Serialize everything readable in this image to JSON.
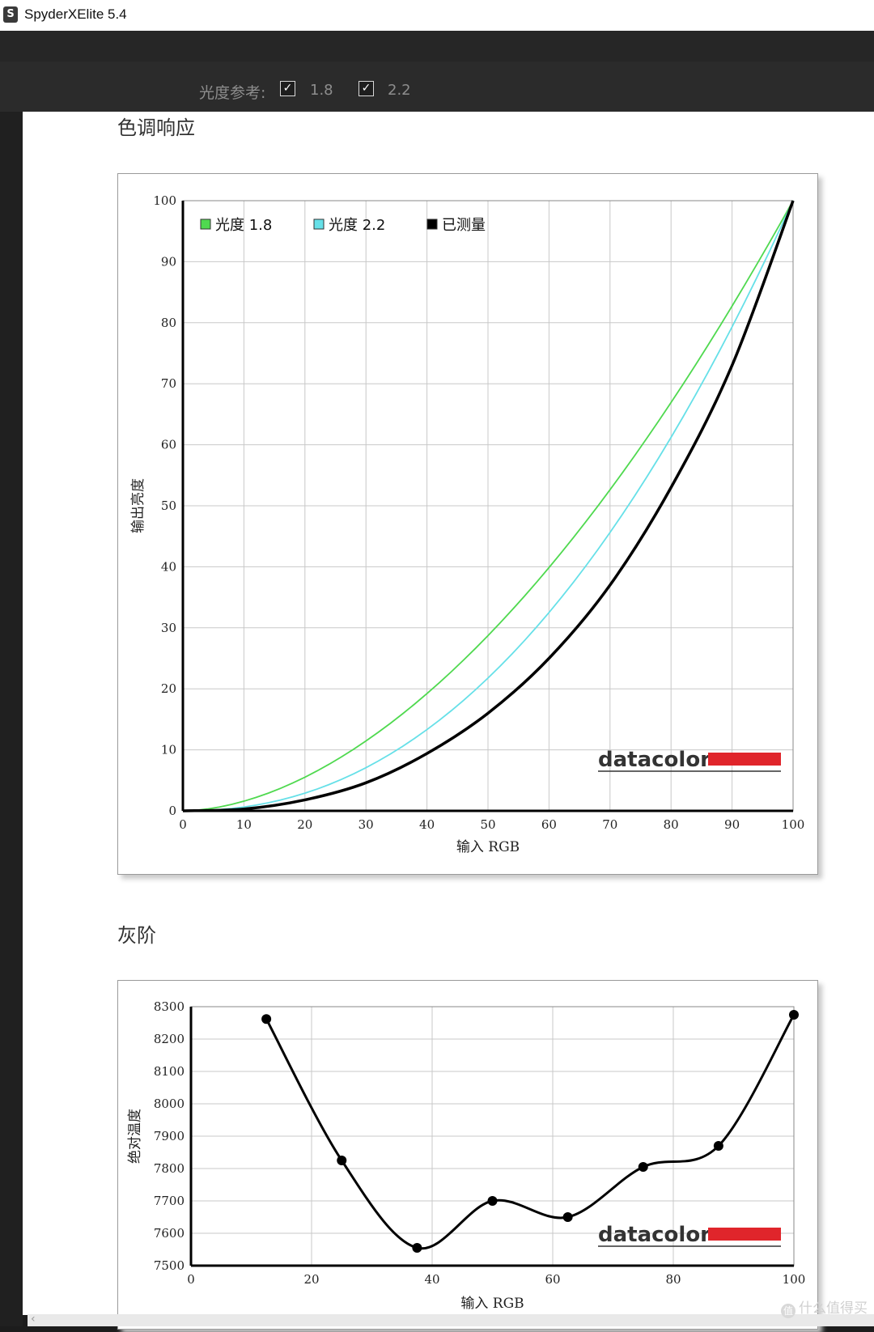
{
  "window": {
    "title": "SpyderXElite 5.4",
    "icon_letter": "S"
  },
  "toolbar": {
    "gamma_label": "光度参考:",
    "options": [
      {
        "label": "1.8",
        "checked": true
      },
      {
        "label": "2.2",
        "checked": true
      }
    ],
    "check_glyph": "✓"
  },
  "sections": {
    "tone_title": "色调响应",
    "gray_title": "灰阶"
  },
  "watermark": {
    "text": "什么值得买",
    "icon": "值"
  },
  "brand": {
    "name": "datacolor",
    "accent": "#e0252b"
  },
  "chart_data": [
    {
      "type": "line",
      "xlabel": "输入 RGB",
      "ylabel": "输出亮度",
      "xlim": [
        0,
        100
      ],
      "ylim": [
        0,
        100
      ],
      "xticks": [
        0,
        10,
        20,
        30,
        40,
        50,
        60,
        70,
        80,
        90,
        100
      ],
      "yticks": [
        0,
        10,
        20,
        30,
        40,
        50,
        60,
        70,
        80,
        90,
        100
      ],
      "grid": true,
      "legend_position": "top-left",
      "series": [
        {
          "name": "光度 1.8",
          "color": "#4fd94f",
          "gamma": 1.8,
          "x": [
            0,
            10,
            20,
            30,
            40,
            50,
            60,
            70,
            80,
            90,
            100
          ],
          "y": [
            0,
            1.6,
            5.5,
            11.5,
            19.2,
            28.7,
            39.9,
            52.6,
            66.9,
            82.7,
            100
          ]
        },
        {
          "name": "光度 2.2",
          "color": "#66e0e8",
          "gamma": 2.2,
          "x": [
            0,
            10,
            20,
            30,
            40,
            50,
            60,
            70,
            80,
            90,
            100
          ],
          "y": [
            0,
            0.6,
            2.9,
            7.1,
            13.3,
            21.8,
            32.5,
            45.6,
            61.2,
            79.3,
            100
          ]
        },
        {
          "name": "已测量",
          "color": "#000000",
          "x": [
            0,
            10,
            20,
            30,
            40,
            50,
            60,
            70,
            80,
            90,
            100
          ],
          "y": [
            0,
            0.3,
            1.8,
            4.6,
            9.4,
            16.0,
            25.0,
            37.0,
            53.0,
            73.0,
            100
          ]
        }
      ]
    },
    {
      "type": "line",
      "xlabel": "输入 RGB",
      "ylabel": "绝对温度",
      "xlim": [
        0,
        100
      ],
      "ylim": [
        7500,
        8300
      ],
      "xticks": [
        0,
        20,
        40,
        60,
        80,
        100
      ],
      "yticks": [
        7500,
        7600,
        7700,
        7800,
        7900,
        8000,
        8100,
        8200,
        8300
      ],
      "grid": true,
      "series": [
        {
          "color": "#000000",
          "markers": true,
          "x": [
            12.5,
            25,
            37.5,
            50,
            62.5,
            75,
            87.5,
            100
          ],
          "y": [
            8262,
            7825,
            7555,
            7700,
            7650,
            7805,
            7870,
            8275
          ]
        }
      ]
    }
  ]
}
